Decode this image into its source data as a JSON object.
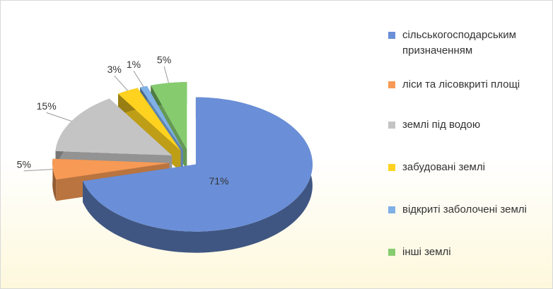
{
  "chart_data": {
    "type": "pie",
    "categories": [
      "сільськогосподарським призначенням",
      "ліси та лісовкриті площі",
      "землі під водою",
      "забудовані землі",
      "відкриті заболочені землі",
      "інші землі"
    ],
    "values": [
      71,
      5,
      15,
      3,
      1,
      5
    ],
    "value_labels": [
      "71%",
      "5%",
      "15%",
      "3%",
      "1%",
      "5%"
    ],
    "colors": [
      "#6a8fd8",
      "#f79a55",
      "#c4c4c4",
      "#ffd21f",
      "#7fb0e6",
      "#86cc6e"
    ],
    "legend": "right"
  }
}
